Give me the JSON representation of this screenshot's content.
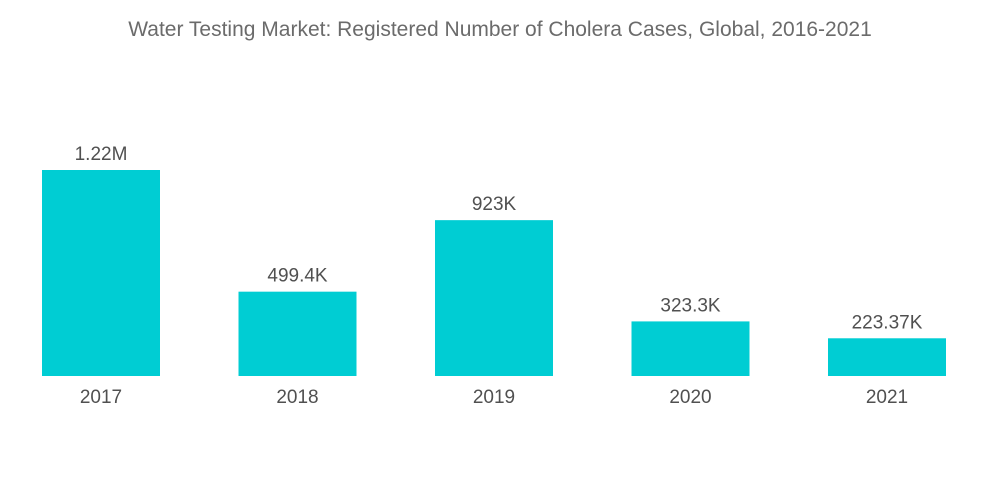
{
  "chart_data": {
    "type": "bar",
    "title": "Water Testing Market: Registered Number of Cholera Cases, Global, 2016-2021",
    "xlabel": "",
    "ylabel": "",
    "categories": [
      "2017",
      "2018",
      "2019",
      "2020",
      "2021"
    ],
    "values": [
      1220000,
      499400,
      923000,
      323300,
      223370
    ],
    "data_labels": [
      "1.22M",
      "499.4K",
      "923K",
      "323.3K",
      "223.37K"
    ],
    "ylim": [
      0,
      1220000
    ],
    "grid": false,
    "legend": "none",
    "bar_color": "#00cdd3"
  }
}
